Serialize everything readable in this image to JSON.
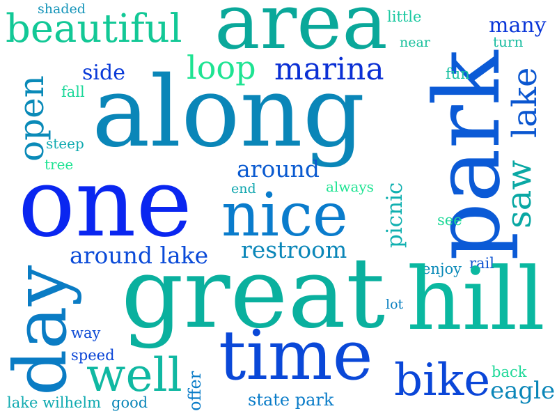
{
  "palette": {
    "blue": "#0a2df0",
    "mid_blue": "#0b5cd8",
    "teal_blue": "#0a86b8",
    "teal": "#0aa8a8",
    "aqua": "#12c8a0",
    "green": "#1ee38a"
  },
  "words": [
    {
      "id": "w-area",
      "text": "area",
      "color": "#0aa89a"
    },
    {
      "id": "w-beautiful",
      "text": "beautiful",
      "color": "#12c896"
    },
    {
      "id": "w-shaded",
      "text": "shaded",
      "color": "#1293b8"
    },
    {
      "id": "w-little",
      "text": "little",
      "color": "#1ac8a0"
    },
    {
      "id": "w-near",
      "text": "near",
      "color": "#18c09c"
    },
    {
      "id": "w-many",
      "text": "many",
      "color": "#0a36d8"
    },
    {
      "id": "w-turn",
      "text": "turn",
      "color": "#18bca0"
    },
    {
      "id": "w-park",
      "text": "park",
      "color": "#0b5ad6"
    },
    {
      "id": "w-loop",
      "text": "loop",
      "color": "#1ee392"
    },
    {
      "id": "w-marina",
      "text": "marina",
      "color": "#0a2fd4"
    },
    {
      "id": "w-side",
      "text": "side",
      "color": "#0a3ad8"
    },
    {
      "id": "w-fun",
      "text": "fun",
      "color": "#18c0a0"
    },
    {
      "id": "w-lake-right",
      "text": "lake",
      "color": "#0a56d0"
    },
    {
      "id": "w-fall",
      "text": "fall",
      "color": "#1ed89a"
    },
    {
      "id": "w-open",
      "text": "open",
      "color": "#0a8ab8"
    },
    {
      "id": "w-along",
      "text": "along",
      "color": "#0a86b8"
    },
    {
      "id": "w-saw",
      "text": "saw",
      "color": "#0aa8a4"
    },
    {
      "id": "w-steep",
      "text": "steep",
      "color": "#10aab0"
    },
    {
      "id": "w-tree",
      "text": "tree",
      "color": "#1ee392"
    },
    {
      "id": "w-around",
      "text": "around",
      "color": "#0a5ad0"
    },
    {
      "id": "w-end",
      "text": "end",
      "color": "#10a6ae"
    },
    {
      "id": "w-always",
      "text": "always",
      "color": "#1ee392"
    },
    {
      "id": "w-picnic",
      "text": "picnic",
      "color": "#10b0b0"
    },
    {
      "id": "w-one",
      "text": "one",
      "color": "#0a26f0"
    },
    {
      "id": "w-nice",
      "text": "nice",
      "color": "#0a7ccc"
    },
    {
      "id": "w-see",
      "text": "see",
      "color": "#1ed898"
    },
    {
      "id": "w-restroom",
      "text": "restroom",
      "color": "#0a86b8"
    },
    {
      "id": "w-around-lake",
      "text": "around lake",
      "color": "#0a4ad8"
    },
    {
      "id": "w-enjoy",
      "text": "enjoy",
      "color": "#0a8ab8"
    },
    {
      "id": "w-rail",
      "text": "rail",
      "color": "#0a50d0"
    },
    {
      "id": "w-day",
      "text": "day",
      "color": "#0a7cc4"
    },
    {
      "id": "w-great",
      "text": "great",
      "color": "#0ab09e"
    },
    {
      "id": "w-hill",
      "text": "hill",
      "color": "#0ab8a0"
    },
    {
      "id": "w-lot",
      "text": "lot",
      "color": "#0a80c0"
    },
    {
      "id": "w-way",
      "text": "way",
      "color": "#0a48d4"
    },
    {
      "id": "w-speed",
      "text": "speed",
      "color": "#0a44d6"
    },
    {
      "id": "w-time",
      "text": "time",
      "color": "#0a48d8"
    },
    {
      "id": "w-well",
      "text": "well",
      "color": "#10b8a2"
    },
    {
      "id": "w-offer",
      "text": "offer",
      "color": "#0a7cc8"
    },
    {
      "id": "w-bike",
      "text": "bike",
      "color": "#0a46d8"
    },
    {
      "id": "w-back",
      "text": "back",
      "color": "#1ed898"
    },
    {
      "id": "w-eagle",
      "text": "eagle",
      "color": "#0a86b8"
    },
    {
      "id": "w-lake-wilhelm",
      "text": "lake wilhelm",
      "color": "#10aab0"
    },
    {
      "id": "w-good",
      "text": "good",
      "color": "#0a86b8"
    },
    {
      "id": "w-state-park",
      "text": "state park",
      "color": "#0a7cc8"
    }
  ]
}
